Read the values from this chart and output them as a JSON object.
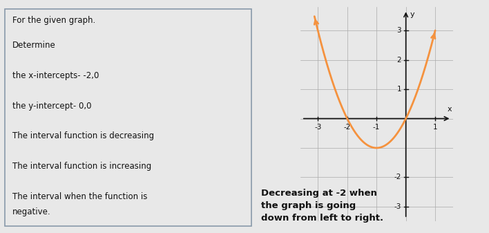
{
  "line0": "For the given graph.",
  "lines": [
    "Determine",
    "",
    "the x-intercepts- -2,0",
    "",
    "the y-intercept- 0,0",
    "",
    "The interval function is decreasing",
    "",
    "The interval function is increasing",
    "",
    "The interval when the function is",
    "negative."
  ],
  "bottom_text": "Decreasing at -2 when\nthe graph is going\ndown from left to right.",
  "curve_color": "#f5923e",
  "axis_color": "#111111",
  "grid_color": "#aaaaaa",
  "background_color": "#e8e8e8",
  "plot_bg_color": "#ffffff",
  "box_edge_color": "#8899aa",
  "x_min": -3.6,
  "x_max": 1.6,
  "y_min": -3.5,
  "y_max": 3.8,
  "x_ticks": [
    -3,
    -2,
    -1,
    1
  ],
  "y_ticks": [
    -3,
    -2,
    1,
    2,
    3
  ],
  "font_size_text": 8.5,
  "font_size_axis": 7.5
}
